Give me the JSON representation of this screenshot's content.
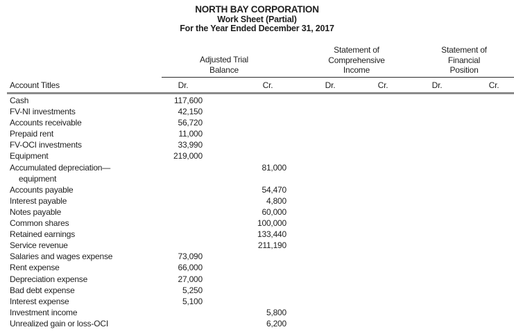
{
  "title": {
    "company": "NORTH BAY CORPORATION",
    "sheet": "Work Sheet (Partial)",
    "period": "For the Year Ended December 31, 2017"
  },
  "table": {
    "account_col_header": "Account Titles",
    "group_headers": [
      {
        "label": "Adjusted Trial Balance",
        "display": "Adjusted Trial\nBalance"
      },
      {
        "label": "Statement of Comprehensive Income",
        "display": "Statement of\nComprehensive\nIncome"
      },
      {
        "label": "Statement of Financial Position",
        "display": "Statement of\nFinancial\nPosition"
      }
    ],
    "col_headers": [
      "Dr.",
      "Cr.",
      "Dr.",
      "Cr.",
      "Dr.",
      "Cr."
    ],
    "column_ids": [
      "atb-dr",
      "atb-cr",
      "sci-dr",
      "sci-cr",
      "sfp-dr",
      "sfp-cr"
    ],
    "rows": [
      {
        "account": [
          "Cash"
        ],
        "cols": [
          "117,600",
          "",
          "",
          "",
          "",
          ""
        ]
      },
      {
        "account": [
          "FV-NI investments"
        ],
        "cols": [
          "42,150",
          "",
          "",
          "",
          "",
          ""
        ]
      },
      {
        "account": [
          "Accounts receivable"
        ],
        "cols": [
          "56,720",
          "",
          "",
          "",
          "",
          ""
        ]
      },
      {
        "account": [
          "Prepaid rent"
        ],
        "cols": [
          "11,000",
          "",
          "",
          "",
          "",
          ""
        ]
      },
      {
        "account": [
          "FV-OCI investments"
        ],
        "cols": [
          "33,990",
          "",
          "",
          "",
          "",
          ""
        ]
      },
      {
        "account": [
          "Equipment"
        ],
        "cols": [
          "219,000",
          "",
          "",
          "",
          "",
          ""
        ]
      },
      {
        "account": [
          "Accumulated depreciation—",
          "equipment"
        ],
        "cols": [
          "",
          "81,000",
          "",
          "",
          "",
          ""
        ]
      },
      {
        "account": [
          "Accounts payable"
        ],
        "cols": [
          "",
          "54,470",
          "",
          "",
          "",
          ""
        ]
      },
      {
        "account": [
          "Interest payable"
        ],
        "cols": [
          "",
          "4,800",
          "",
          "",
          "",
          ""
        ]
      },
      {
        "account": [
          "Notes payable"
        ],
        "cols": [
          "",
          "60,000",
          "",
          "",
          "",
          ""
        ]
      },
      {
        "account": [
          "Common shares"
        ],
        "cols": [
          "",
          "100,000",
          "",
          "",
          "",
          ""
        ]
      },
      {
        "account": [
          "Retained earnings"
        ],
        "cols": [
          "",
          "133,440",
          "",
          "",
          "",
          ""
        ]
      },
      {
        "account": [
          "Service revenue"
        ],
        "cols": [
          "",
          "211,190",
          "",
          "",
          "",
          ""
        ]
      },
      {
        "account": [
          "Salaries and wages expense"
        ],
        "cols": [
          "73,090",
          "",
          "",
          "",
          "",
          ""
        ]
      },
      {
        "account": [
          "Rent expense"
        ],
        "cols": [
          "66,000",
          "",
          "",
          "",
          "",
          ""
        ]
      },
      {
        "account": [
          "Depreciation expense"
        ],
        "cols": [
          "27,000",
          "",
          "",
          "",
          "",
          ""
        ]
      },
      {
        "account": [
          "Bad debt expense"
        ],
        "cols": [
          "5,250",
          "",
          "",
          "",
          "",
          ""
        ]
      },
      {
        "account": [
          "Interest expense"
        ],
        "cols": [
          "5,100",
          "",
          "",
          "",
          "",
          ""
        ]
      },
      {
        "account": [
          "Investment income"
        ],
        "cols": [
          "",
          "5,800",
          "",
          "",
          "",
          ""
        ]
      },
      {
        "account": [
          "Unrealized gain or loss-OCI"
        ],
        "cols": [
          "",
          "6,200",
          "",
          "",
          "",
          ""
        ]
      }
    ]
  },
  "colors": {
    "text": "#1e1e1e",
    "rule_thin": "#2b2b2b",
    "rule_thick": "#8a8a8a",
    "background": "#ffffff"
  }
}
